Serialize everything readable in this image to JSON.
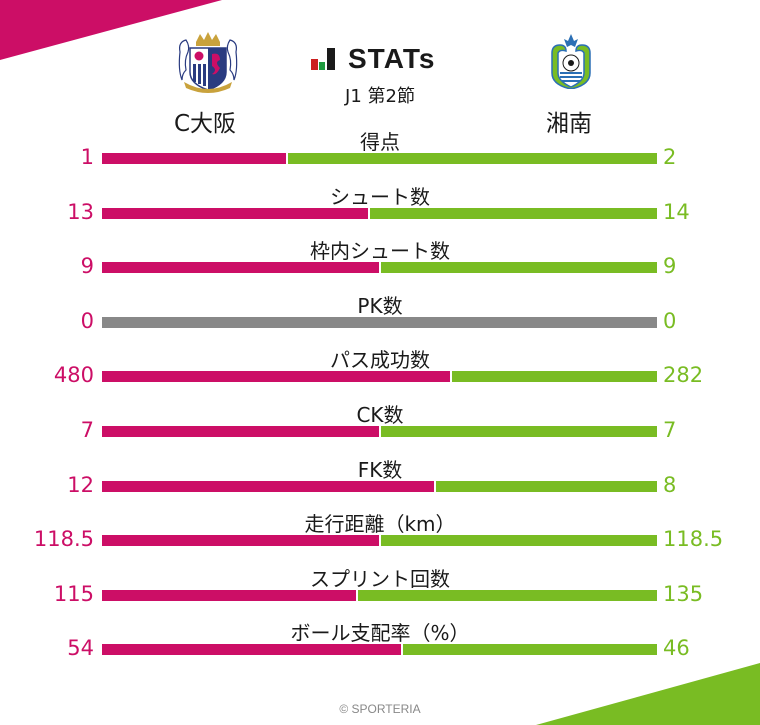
{
  "brand": {
    "word": "STATs",
    "round": "J1 第2節"
  },
  "teams": {
    "home": {
      "name": "C大阪",
      "color": "#cc0e66"
    },
    "away": {
      "name": "湘南",
      "color": "#79bc23"
    }
  },
  "footer": "© SPORTERIA",
  "stats": [
    {
      "label": "得点",
      "home": "1",
      "away": "2"
    },
    {
      "label": "シュート数",
      "home": "13",
      "away": "14"
    },
    {
      "label": "枠内シュート数",
      "home": "9",
      "away": "9"
    },
    {
      "label": "PK数",
      "home": "0",
      "away": "0"
    },
    {
      "label": "パス成功数",
      "home": "480",
      "away": "282"
    },
    {
      "label": "CK数",
      "home": "7",
      "away": "7"
    },
    {
      "label": "FK数",
      "home": "12",
      "away": "8"
    },
    {
      "label": "走行距離（km）",
      "home": "118.5",
      "away": "118.5"
    },
    {
      "label": "スプリント回数",
      "home": "115",
      "away": "135"
    },
    {
      "label": "ボール支配率（%）",
      "home": "54",
      "away": "46"
    }
  ],
  "chart_data": {
    "type": "bar",
    "orientation": "horizontal-stacked-ratio",
    "title": "STATs J1 第2節",
    "categories": [
      "得点",
      "シュート数",
      "枠内シュート数",
      "PK数",
      "パス成功数",
      "CK数",
      "FK数",
      "走行距離（km）",
      "スプリント回数",
      "ボール支配率（%）"
    ],
    "series": [
      {
        "name": "C大阪",
        "color": "#cc0e66",
        "values": [
          1,
          13,
          9,
          0,
          480,
          7,
          12,
          118.5,
          115,
          54
        ]
      },
      {
        "name": "湘南",
        "color": "#79bc23",
        "values": [
          2,
          14,
          9,
          0,
          282,
          7,
          8,
          118.5,
          135,
          46
        ]
      }
    ],
    "zero_color": "#888888",
    "legend": "team names above columns"
  }
}
